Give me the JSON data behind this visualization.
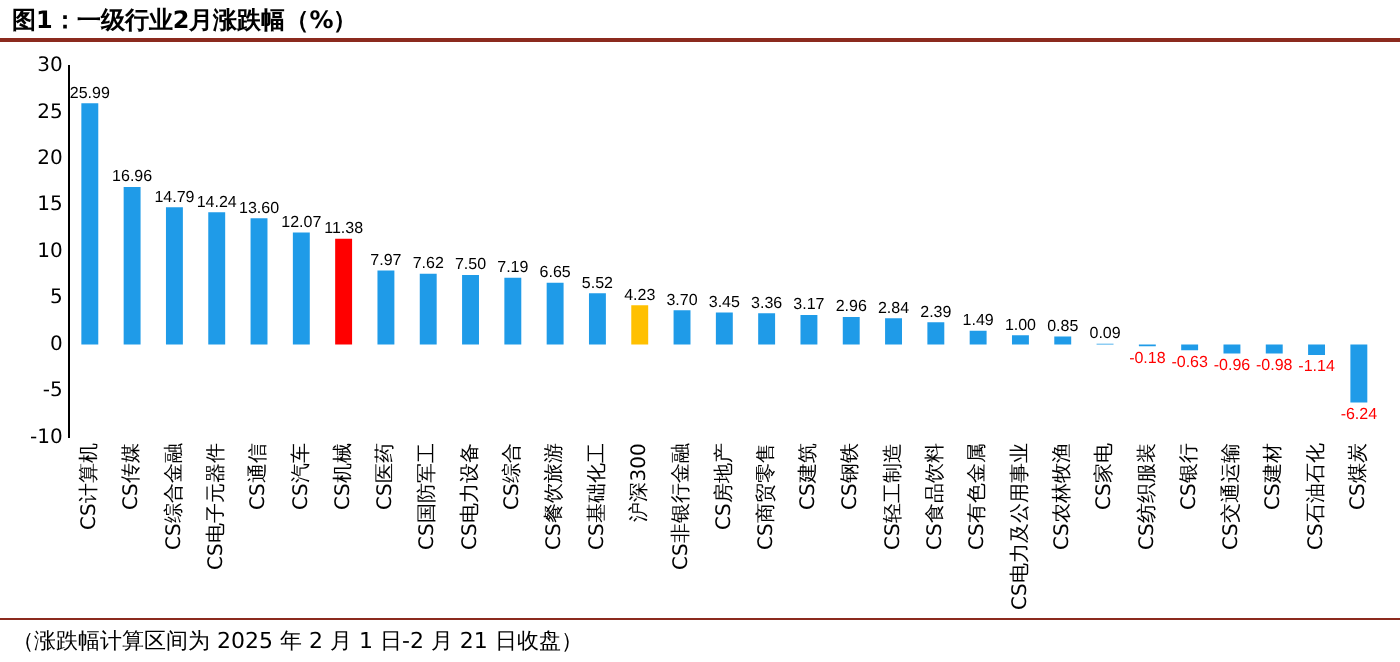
{
  "chart_data": {
    "type": "bar",
    "title": "图1：一级行业2月涨跌幅（%）",
    "categories": [
      "CS计算机",
      "CS传媒",
      "CS综合金融",
      "CS电子元器件",
      "CS通信",
      "CS汽车",
      "CS机械",
      "CS医药",
      "CS国防军工",
      "CS电力设备",
      "CS综合",
      "CS餐饮旅游",
      "CS基础化工",
      "沪深300",
      "CS非银行金融",
      "CS房地产",
      "CS商贸零售",
      "CS建筑",
      "CS钢铁",
      "CS轻工制造",
      "CS食品饮料",
      "CS有色金属",
      "CS电力及公用事业",
      "CS农林牧渔",
      "CS家电",
      "CS纺织服装",
      "CS银行",
      "CS交通运输",
      "CS建材",
      "CS石油石化",
      "CS煤炭"
    ],
    "values": [
      25.99,
      16.96,
      14.79,
      14.24,
      13.6,
      12.07,
      11.38,
      7.97,
      7.62,
      7.5,
      7.19,
      6.65,
      5.52,
      4.23,
      3.7,
      3.45,
      3.36,
      3.17,
      2.96,
      2.84,
      2.39,
      1.49,
      1.0,
      0.85,
      0.09,
      -0.18,
      -0.63,
      -0.96,
      -0.98,
      -1.14,
      -6.24
    ],
    "colors": [
      "#1f9be8",
      "#1f9be8",
      "#1f9be8",
      "#1f9be8",
      "#1f9be8",
      "#1f9be8",
      "#ff0000",
      "#1f9be8",
      "#1f9be8",
      "#1f9be8",
      "#1f9be8",
      "#1f9be8",
      "#1f9be8",
      "#ffc000",
      "#1f9be8",
      "#1f9be8",
      "#1f9be8",
      "#1f9be8",
      "#1f9be8",
      "#1f9be8",
      "#1f9be8",
      "#1f9be8",
      "#1f9be8",
      "#1f9be8",
      "#1f9be8",
      "#1f9be8",
      "#1f9be8",
      "#1f9be8",
      "#1f9be8",
      "#1f9be8",
      "#1f9be8"
    ],
    "value_labels": [
      "25.99",
      "16.96",
      "14.79",
      "14.24",
      "13.60",
      "12.07",
      "11.38",
      "7.97",
      "7.62",
      "7.50",
      "7.19",
      "6.65",
      "5.52",
      "4.23",
      "3.70",
      "3.45",
      "3.36",
      "3.17",
      "2.96",
      "2.84",
      "2.39",
      "1.49",
      "1.00",
      "0.85",
      "0.09",
      "-0.18",
      "-0.63",
      "-0.96",
      "-0.98",
      "-1.14",
      "-6.24"
    ],
    "ylim": [
      -10,
      30
    ],
    "yticks": [
      -10,
      -5,
      0,
      5,
      10,
      15,
      20,
      25,
      30
    ],
    "grid": false,
    "annotations": [
      "（涨跌幅计算区间为 2025 年 2 月 1 日-2 月 21 日收盘）"
    ]
  }
}
